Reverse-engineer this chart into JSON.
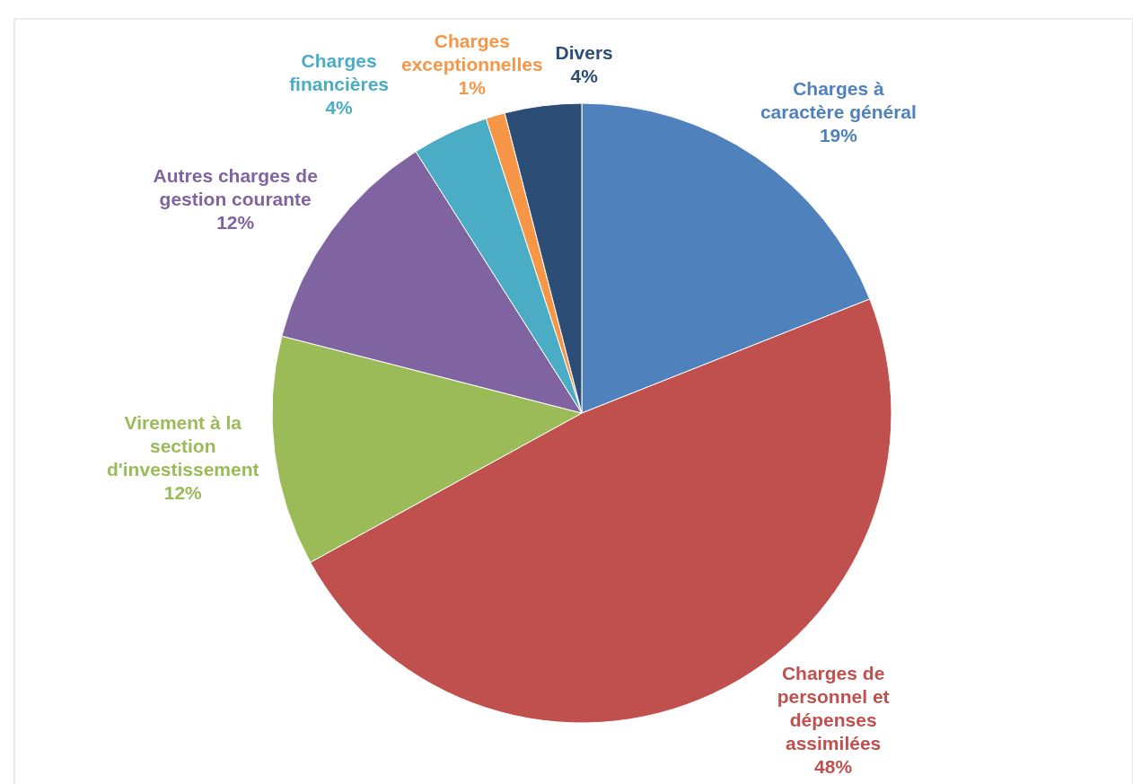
{
  "chart_data": {
    "type": "pie",
    "categories": [
      "Charges à caractère général",
      "Charges de personnel et dépenses assimilées",
      "Virement à la section d'investissement",
      "Autres charges de gestion courante",
      "Charges financières",
      "Charges exceptionnelles",
      "Divers"
    ],
    "values": [
      19,
      48,
      12,
      12,
      4,
      1,
      4
    ],
    "colors": [
      "#4f81bd",
      "#c0504d",
      "#9bbb59",
      "#8064a2",
      "#4bacc6",
      "#f79646",
      "#2c4d75"
    ],
    "value_labels": [
      "19%",
      "48%",
      "12%",
      "12%",
      "4%",
      "1%",
      "4%"
    ]
  }
}
